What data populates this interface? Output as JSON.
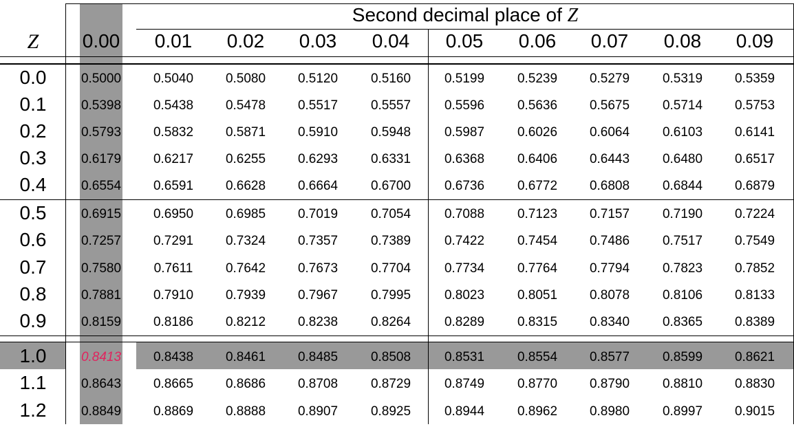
{
  "table": {
    "caption_text": "Second decimal place of ",
    "caption_symbol": "Z",
    "row_header_label": "Z",
    "columns": [
      "0.00",
      "0.01",
      "0.02",
      "0.03",
      "0.04",
      "0.05",
      "0.06",
      "0.07",
      "0.08",
      "0.09"
    ],
    "rows": [
      {
        "z": "0.0",
        "values": [
          "0.5000",
          "0.5040",
          "0.5080",
          "0.5120",
          "0.5160",
          "0.5199",
          "0.5239",
          "0.5279",
          "0.5319",
          "0.5359"
        ]
      },
      {
        "z": "0.1",
        "values": [
          "0.5398",
          "0.5438",
          "0.5478",
          "0.5517",
          "0.5557",
          "0.5596",
          "0.5636",
          "0.5675",
          "0.5714",
          "0.5753"
        ]
      },
      {
        "z": "0.2",
        "values": [
          "0.5793",
          "0.5832",
          "0.5871",
          "0.5910",
          "0.5948",
          "0.5987",
          "0.6026",
          "0.6064",
          "0.6103",
          "0.6141"
        ]
      },
      {
        "z": "0.3",
        "values": [
          "0.6179",
          "0.6217",
          "0.6255",
          "0.6293",
          "0.6331",
          "0.6368",
          "0.6406",
          "0.6443",
          "0.6480",
          "0.6517"
        ]
      },
      {
        "z": "0.4",
        "values": [
          "0.6554",
          "0.6591",
          "0.6628",
          "0.6664",
          "0.6700",
          "0.6736",
          "0.6772",
          "0.6808",
          "0.6844",
          "0.6879"
        ]
      },
      {
        "z": "0.5",
        "values": [
          "0.6915",
          "0.6950",
          "0.6985",
          "0.7019",
          "0.7054",
          "0.7088",
          "0.7123",
          "0.7157",
          "0.7190",
          "0.7224"
        ]
      },
      {
        "z": "0.6",
        "values": [
          "0.7257",
          "0.7291",
          "0.7324",
          "0.7357",
          "0.7389",
          "0.7422",
          "0.7454",
          "0.7486",
          "0.7517",
          "0.7549"
        ]
      },
      {
        "z": "0.7",
        "values": [
          "0.7580",
          "0.7611",
          "0.7642",
          "0.7673",
          "0.7704",
          "0.7734",
          "0.7764",
          "0.7794",
          "0.7823",
          "0.7852"
        ]
      },
      {
        "z": "0.8",
        "values": [
          "0.7881",
          "0.7910",
          "0.7939",
          "0.7967",
          "0.7995",
          "0.8023",
          "0.8051",
          "0.8078",
          "0.8106",
          "0.8133"
        ]
      },
      {
        "z": "0.9",
        "values": [
          "0.8159",
          "0.8186",
          "0.8212",
          "0.8238",
          "0.8264",
          "0.8289",
          "0.8315",
          "0.8340",
          "0.8365",
          "0.8389"
        ]
      },
      {
        "z": "1.0",
        "values": [
          "0.8413",
          "0.8438",
          "0.8461",
          "0.8485",
          "0.8508",
          "0.8531",
          "0.8554",
          "0.8577",
          "0.8599",
          "0.8621"
        ]
      },
      {
        "z": "1.1",
        "values": [
          "0.8643",
          "0.8665",
          "0.8686",
          "0.8708",
          "0.8729",
          "0.8749",
          "0.8770",
          "0.8790",
          "0.8810",
          "0.8830"
        ]
      },
      {
        "z": "1.2",
        "values": [
          "0.8849",
          "0.8869",
          "0.8888",
          "0.8907",
          "0.8925",
          "0.8944",
          "0.8962",
          "0.8980",
          "0.8997",
          "0.9015"
        ]
      }
    ],
    "highlight": {
      "column_index": 0,
      "row_index": 10,
      "shade_color": "#999999",
      "result_color": "#e0245e"
    }
  }
}
